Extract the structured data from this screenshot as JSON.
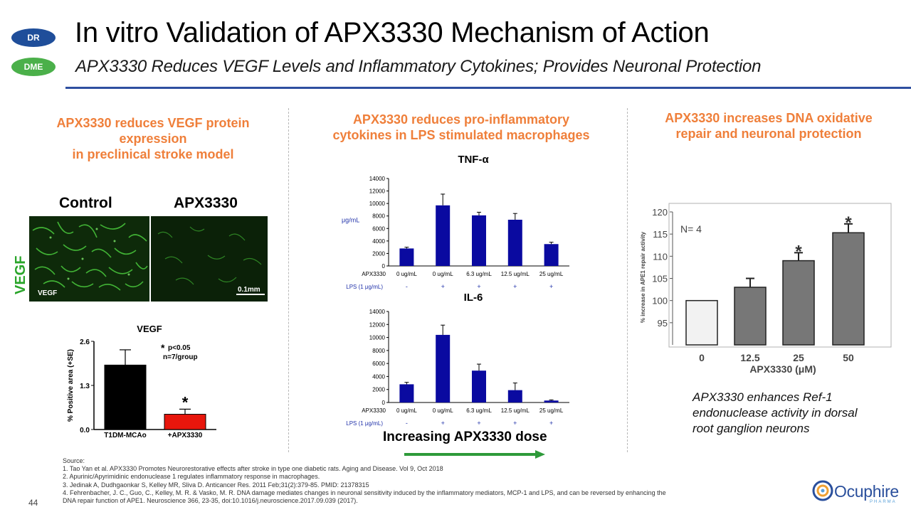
{
  "badges": {
    "dr": "DR",
    "dme": "DME"
  },
  "header": {
    "title": "In vitro Validation of APX3330 Mechanism of Action",
    "subtitle": "APX3330 Reduces VEGF Levels and Inflammatory Cytokines; Provides Neuronal Protection"
  },
  "left": {
    "heading": [
      "APX3330 reduces VEGF protein",
      "expression",
      "in preclinical stroke model"
    ],
    "col_control": "Control",
    "col_apx": "APX3330",
    "side_label": "VEGF",
    "micro_vegf": "VEGF",
    "micro_scale": "0.1mm",
    "colors": {
      "accent": "#ef7f3a",
      "vegf_green": "#2aa52a"
    }
  },
  "middle": {
    "heading": [
      "APX3330 reduces pro-inflammatory",
      "cytokines in LPS stimulated macrophages"
    ],
    "dose_label": "Increasing APX3330 dose"
  },
  "right": {
    "heading": [
      "APX3330 increases DNA oxidative",
      "repair and neuronal protection"
    ],
    "caption": [
      "APX3330 enhances Ref-1",
      "endonuclease activity in dorsal",
      "root ganglion neurons"
    ]
  },
  "chart_data": [
    {
      "type": "bar",
      "title": "VEGF",
      "ylabel": "% Positive area (+SE)",
      "categories": [
        "T1DM-MCAo",
        "+APX3330"
      ],
      "values": [
        1.9,
        0.45
      ],
      "errors": [
        0.45,
        0.15
      ],
      "bar_colors": [
        "#000000",
        "#e8160c"
      ],
      "yticks": [
        "0.0",
        "1.3",
        "2.6"
      ],
      "ylim": [
        0,
        2.6
      ],
      "annotation": [
        "p<0.05",
        "n=7/group"
      ],
      "significant": [
        false,
        true
      ]
    },
    {
      "type": "bar",
      "title": "TNF-α",
      "ylabel": "μg/mL",
      "categories": [
        "0 ug/mL",
        "0 ug/mL",
        "6.3 ug/mL",
        "12.5 ug/mL",
        "25 ug/mL"
      ],
      "values": [
        2800,
        9700,
        8100,
        7400,
        3500
      ],
      "errors": [
        200,
        1800,
        500,
        1000,
        300
      ],
      "yticks": [
        "0",
        "2000",
        "4000",
        "6000",
        "8000",
        "10000",
        "12000",
        "14000"
      ],
      "ylim": [
        0,
        14000
      ],
      "row_apx_label": "APX3330",
      "row_lps_label": "LPS (1 μg/mL)",
      "lps": [
        "-",
        "+",
        "+",
        "+",
        "+"
      ]
    },
    {
      "type": "bar",
      "title": "IL-6",
      "ylabel": "",
      "categories": [
        "0 ug/mL",
        "0 ug/mL",
        "6.3 ug/mL",
        "12.5 ug/mL",
        "25 ug/mL"
      ],
      "values": [
        2800,
        10400,
        4900,
        1900,
        300
      ],
      "errors": [
        300,
        1500,
        1000,
        1100,
        100
      ],
      "yticks": [
        "0",
        "2000",
        "4000",
        "6000",
        "8000",
        "10000",
        "12000",
        "14000"
      ],
      "ylim": [
        0,
        14000
      ],
      "row_apx_label": "APX3330",
      "row_lps_label": "LPS (1 μg/mL)",
      "lps": [
        "-",
        "+",
        "+",
        "+",
        "+"
      ]
    },
    {
      "type": "bar",
      "title": "",
      "ylabel": "% increase in APE1 repair activity",
      "xlabel": "APX3330 (μM)",
      "categories": [
        "0",
        "12.5",
        "25",
        "50"
      ],
      "values": [
        100,
        103,
        109,
        115.3
      ],
      "errors": [
        0,
        2,
        1.8,
        2
      ],
      "yticks": [
        "95",
        "100",
        "105",
        "110",
        "115",
        "120"
      ],
      "ylim": [
        90,
        120
      ],
      "annotation": [
        "N= 4"
      ],
      "significant": [
        false,
        false,
        true,
        true
      ]
    }
  ],
  "sources": [
    "Source:",
    "1. Tao Yan et al. APX3330 Promotes Neurorestorative effects after stroke in type one diabetic rats. Aging and Disease. Vol 9, Oct 2018",
    "2. Apurinic/Apyrimidinic endonuclease 1 regulates inflammatory response in macrophages.",
    "3. Jedinak A, Dudhgaonkar S, Kelley MR, Sliva D. Anticancer Res. 2011 Feb;31(2):379-85. PMID:  21378315",
    "4. Fehrenbacher, J. C., Guo, C., Kelley, M. R. & Vasko, M. R. DNA damage mediates changes in neuronal sensitivity induced by the inflammatory mediators, MCP-1  and LPS,  and can be reversed by enhancing the",
    "DNA repair function of APE1. Neuroscience 366, 23-35, doi:10.1016/j.neuroscience.2017.09.039 (2017)."
  ],
  "page_number": "44",
  "logo": {
    "name": "Ocuphire",
    "sub": "PHARMA"
  }
}
